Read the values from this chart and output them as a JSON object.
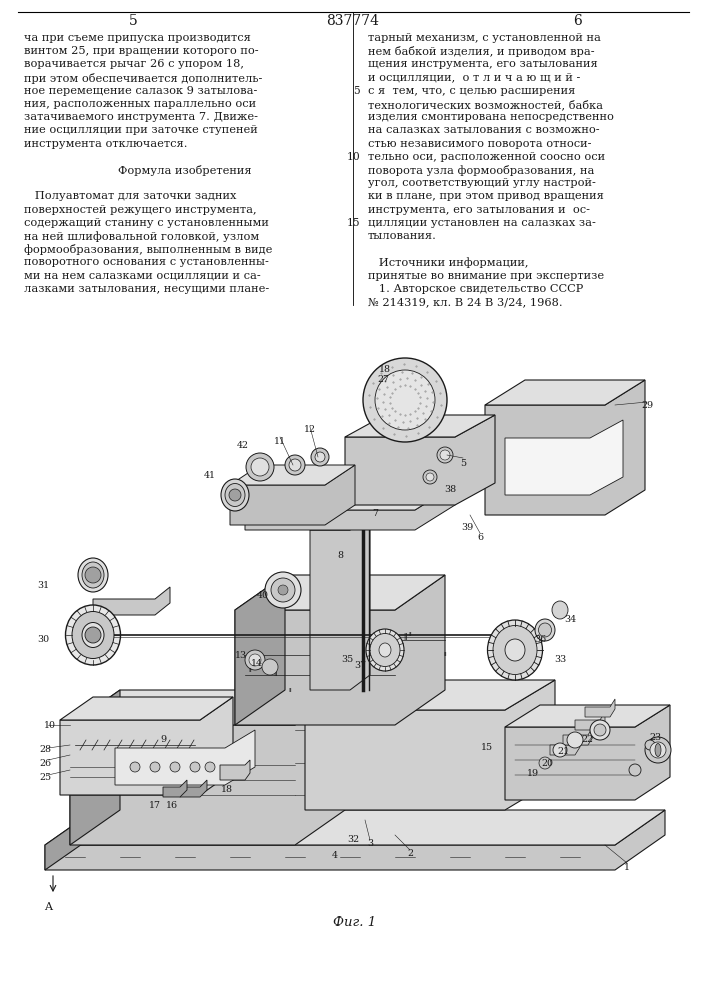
{
  "patent_number": "837774",
  "page_left": "5",
  "page_right": "6",
  "left_column_text": [
    "ча при съеме припуска производится",
    "винтом 25, при вращении которого по-",
    "ворачивается рычаг 26 с упором 18,",
    "при этом обеспечивается дополнитель-",
    "ное перемещение салазок 9 затылова-",
    "ния, расположенных параллельно оси",
    "затачиваемого инструмента 7. Движе-",
    "ние осцилляции при заточке ступеней",
    "инструмента отключается.",
    "",
    "        Формула изобретения",
    "",
    "   Полуавтомат для заточки задних",
    "поверхностей режущего инструмента,",
    "содержащий станину с установленными",
    "на ней шлифовальной головкой, узлом",
    "формообразования, выполненным в виде",
    "поворотного основания с установленны-",
    "ми на нем салазками осцилляции и са-",
    "лазками затылования, несущими плане-"
  ],
  "right_column_text": [
    "тарный механизм, с установленной на",
    "нем бабкой изделия, и приводом вра-",
    "щения инструмента, его затылования",
    "и осцилляции,  о т л и ч а ю щ и й -",
    "с я  тем, что, с целью расширения",
    "технологических возможностей, бабка",
    "изделия смонтирована непосредственно",
    "на салазках затылования с возможно-",
    "стью независимого поворота относи-",
    "тельно оси, расположенной соосно оси",
    "поворота узла формообразования, на",
    "угол, соответствующий углу настрой-",
    "ки в плане, при этом привод вращения",
    "инструмента, его затылования и  ос-",
    "цилляции установлен на салазках за-",
    "тылования.",
    "",
    "   Источники информации,",
    "принятые во внимание при экспертизе",
    "   1. Авторское свидетельство СССР",
    "№ 214319, кл. В 24 В 3/24, 1968."
  ],
  "background_color": "#ffffff",
  "text_color": "#1a1a1a",
  "font_size_body": 8.2,
  "font_size_patent": 10.0
}
